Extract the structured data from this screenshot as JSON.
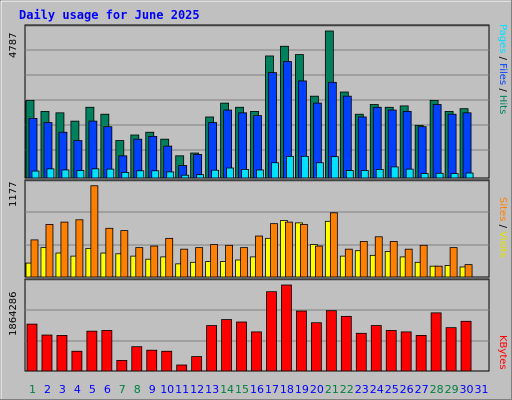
{
  "header": {
    "title": "Daily usage for June 2025"
  },
  "colors": {
    "hits": "#00805c",
    "files": "#0040ff",
    "pages": "#00e0ff",
    "visits": "#ffff00",
    "sites": "#ff8000",
    "kbytes": "#ff0000",
    "weekend_day": "#008040",
    "weekday": "#0000ff"
  },
  "chart_data": [
    {
      "type": "bar",
      "panel": "top",
      "ymax_label": "4787",
      "right_labels": [
        "Pages",
        "Files",
        "Hits"
      ],
      "x": [
        1,
        2,
        3,
        4,
        5,
        6,
        7,
        8,
        9,
        10,
        11,
        12,
        13,
        14,
        15,
        16,
        17,
        18,
        19,
        20,
        21,
        22,
        23,
        24,
        25,
        26,
        27,
        28,
        29,
        30,
        31
      ],
      "series": [
        {
          "name": "Hits",
          "values": [
            2800,
            2400,
            2350,
            2050,
            2550,
            2300,
            1350,
            1550,
            1650,
            1400,
            800,
            900,
            2200,
            2700,
            2550,
            2400,
            4400,
            4750,
            4450,
            2950,
            5300,
            3100,
            2300,
            2650,
            2550,
            2600,
            1900,
            2800,
            2400,
            2500,
            0
          ]
        },
        {
          "name": "Files",
          "values": [
            2150,
            2000,
            1650,
            1350,
            2050,
            1850,
            800,
            1400,
            1500,
            1150,
            450,
            850,
            2000,
            2450,
            2350,
            2250,
            3800,
            4200,
            3500,
            2700,
            3450,
            2950,
            2200,
            2550,
            2450,
            2400,
            1850,
            2650,
            2300,
            2350,
            0
          ]
        },
        {
          "name": "Pages",
          "values": [
            250,
            330,
            290,
            270,
            330,
            320,
            200,
            260,
            260,
            220,
            100,
            120,
            280,
            360,
            310,
            290,
            550,
            780,
            780,
            550,
            770,
            270,
            270,
            310,
            400,
            320,
            160,
            170,
            160,
            180,
            0
          ]
        }
      ]
    },
    {
      "type": "bar",
      "panel": "middle",
      "ymax_label": "1177",
      "right_labels": [
        "Sites",
        "Visits"
      ],
      "x": [
        1,
        2,
        3,
        4,
        5,
        6,
        7,
        8,
        9,
        10,
        11,
        12,
        13,
        14,
        15,
        16,
        17,
        18,
        19,
        20,
        21,
        22,
        23,
        24,
        25,
        26,
        27,
        28,
        29,
        30,
        31
      ],
      "series": [
        {
          "name": "Visits",
          "values": [
            180,
            380,
            310,
            270,
            370,
            310,
            300,
            270,
            230,
            260,
            170,
            190,
            200,
            200,
            220,
            260,
            500,
            730,
            700,
            420,
            720,
            270,
            340,
            280,
            330,
            260,
            190,
            140,
            150,
            130,
            0
          ]
        },
        {
          "name": "Sites",
          "values": [
            480,
            680,
            710,
            740,
            1180,
            630,
            600,
            380,
            400,
            500,
            360,
            380,
            420,
            410,
            380,
            530,
            690,
            710,
            680,
            400,
            830,
            360,
            460,
            520,
            460,
            360,
            410,
            140,
            380,
            160,
            0
          ]
        }
      ]
    },
    {
      "type": "bar",
      "panel": "bottom",
      "ymax_label": "1864286",
      "right_labels": [
        "KBytes"
      ],
      "x": [
        1,
        2,
        3,
        4,
        5,
        6,
        7,
        8,
        9,
        10,
        11,
        12,
        13,
        14,
        15,
        16,
        17,
        18,
        19,
        20,
        21,
        22,
        23,
        24,
        25,
        26,
        27,
        28,
        29,
        30,
        31
      ],
      "series": [
        {
          "name": "KBytes",
          "values": [
            1330000,
            1020000,
            1010000,
            560000,
            1130000,
            1150000,
            300000,
            690000,
            590000,
            560000,
            170000,
            410000,
            1290000,
            1460000,
            1390000,
            1110000,
            2250000,
            2440000,
            1700000,
            1370000,
            1710000,
            1550000,
            1070000,
            1290000,
            1150000,
            1110000,
            1010000,
            1650000,
            1230000,
            1410000,
            0
          ]
        }
      ]
    }
  ],
  "x_axis": {
    "labels": [
      "1",
      "2",
      "3",
      "4",
      "5",
      "6",
      "7",
      "8",
      "9",
      "10",
      "11",
      "12",
      "13",
      "14",
      "15",
      "16",
      "17",
      "18",
      "19",
      "20",
      "21",
      "22",
      "23",
      "24",
      "25",
      "26",
      "27",
      "28",
      "29",
      "30",
      "31"
    ],
    "weekend": [
      1,
      7,
      8,
      14,
      15,
      21,
      22,
      28,
      29
    ]
  }
}
